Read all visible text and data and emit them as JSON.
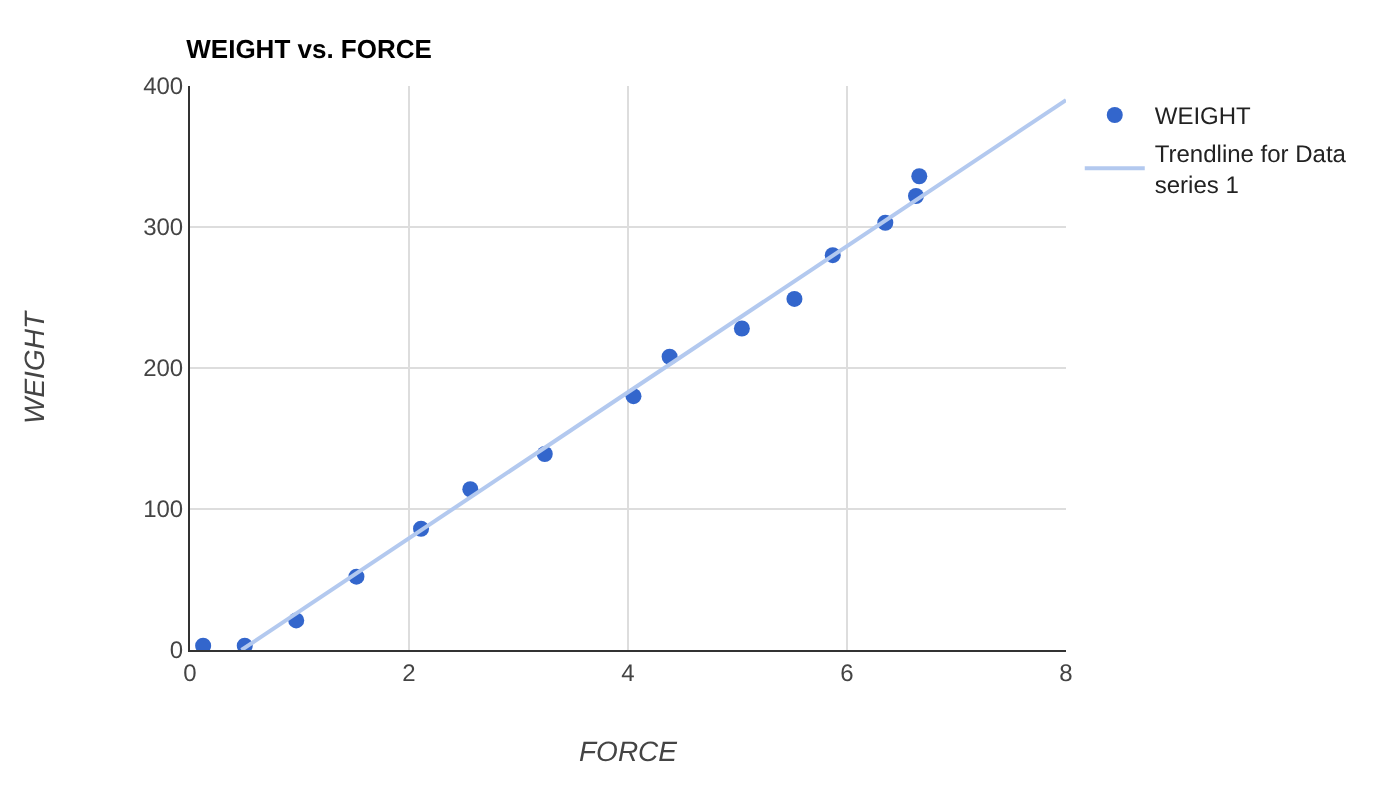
{
  "chart_data": {
    "type": "scatter",
    "title": "WEIGHT vs. FORCE",
    "xlabel": "FORCE",
    "ylabel": "WEIGHT",
    "series": [
      {
        "name": "WEIGHT",
        "color": "#3366cc",
        "marker": "circle",
        "x": [
          0.12,
          0.5,
          0.97,
          1.52,
          2.11,
          2.56,
          3.24,
          4.05,
          4.38,
          5.04,
          5.52,
          5.87,
          6.35,
          6.63,
          6.66
        ],
        "values": [
          3,
          3,
          21,
          52,
          86,
          114,
          139,
          180,
          208,
          228,
          249,
          280,
          303,
          322,
          336
        ]
      },
      {
        "name": "Trendline for Data series 1",
        "type": "line",
        "color": "#b3c9ef",
        "x": [
          0.47,
          8
        ],
        "values": [
          0,
          390
        ]
      }
    ],
    "xlim": [
      0,
      8
    ],
    "xticks": [
      0,
      2,
      4,
      6,
      8
    ],
    "ylim": [
      0,
      400
    ],
    "yticks": [
      0,
      100,
      200,
      300,
      400
    ],
    "grid": true,
    "legend": "top right"
  }
}
